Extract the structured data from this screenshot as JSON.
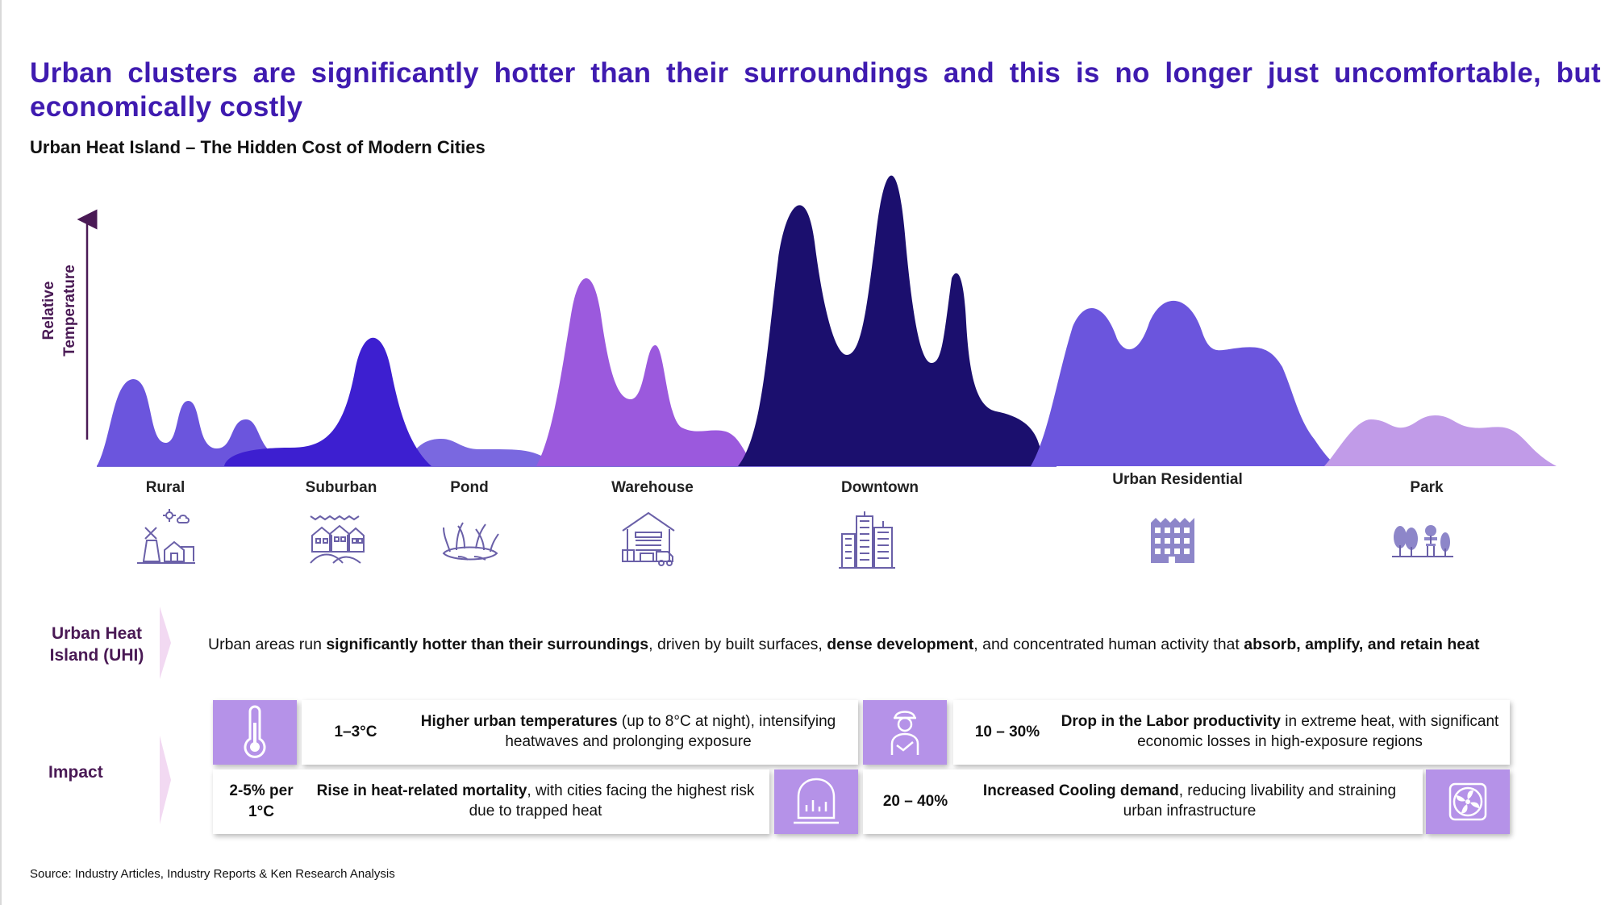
{
  "title": "Urban clusters are significantly hotter than their surroundings and this is no longer just uncomfortable, but economically costly",
  "subtitle": "Urban Heat Island – The Hidden Cost of Modern Cities",
  "y_axis_label": "Relative Temperature",
  "zones": [
    {
      "label": "Rural",
      "icon": "windmill-farm-icon",
      "color": "#6b55dd"
    },
    {
      "label": "Suburban",
      "icon": "houses-icon",
      "color": "#3d1fd0"
    },
    {
      "label": "Pond",
      "icon": "pond-reeds-icon",
      "color": "#7a68e0"
    },
    {
      "label": "Warehouse",
      "icon": "warehouse-icon",
      "color": "#9b59dd"
    },
    {
      "label": "Downtown",
      "icon": "skyscrapers-icon",
      "color": "#1b0f6e"
    },
    {
      "label": "Urban Residential",
      "icon": "apartment-building-icon",
      "color": "#6b55dd"
    },
    {
      "label": "Park",
      "icon": "park-trees-bench-icon",
      "color": "#c19be8"
    }
  ],
  "uhi": {
    "label": "Urban Heat Island (UHI)",
    "text_1": "Urban areas run ",
    "bold_1": "significantly hotter than their surroundings",
    "text_2": ", driven by built surfaces, ",
    "bold_2": "dense development",
    "text_3": ", and concentrated human activity that ",
    "bold_3": "absorb, amplify, and retain heat"
  },
  "impact": {
    "label": "Impact",
    "cards": [
      {
        "stat": "1–3°C",
        "bold": "Higher urban temperatures",
        "text": " (up to 8°C at night),  intensifying heatwaves and prolonging exposure",
        "icon": "thermometer-icon"
      },
      {
        "stat": "10 – 30%",
        "bold": "Drop in the Labor productivity",
        "text": " in extreme heat, with significant economic losses in high-exposure regions",
        "icon": "worker-icon"
      },
      {
        "stat": "2-5% per 1°C",
        "bold": "Rise in heat-related mortality",
        "text": ", with cities facing the highest risk due to trapped heat",
        "icon": "medical-chart-icon"
      },
      {
        "stat": "20 – 40%",
        "bold": "Increased Cooling demand",
        "text": ", reducing livability and straining urban infrastructure",
        "icon": "fan-icon"
      }
    ]
  },
  "source": "Source: Industry Articles, Industry Reports & Ken Research Analysis",
  "colors": {
    "title": "#3f1bb0",
    "label": "#4a1a55",
    "icon_box": "#b592e8",
    "icon_line": "#6a60a8"
  }
}
